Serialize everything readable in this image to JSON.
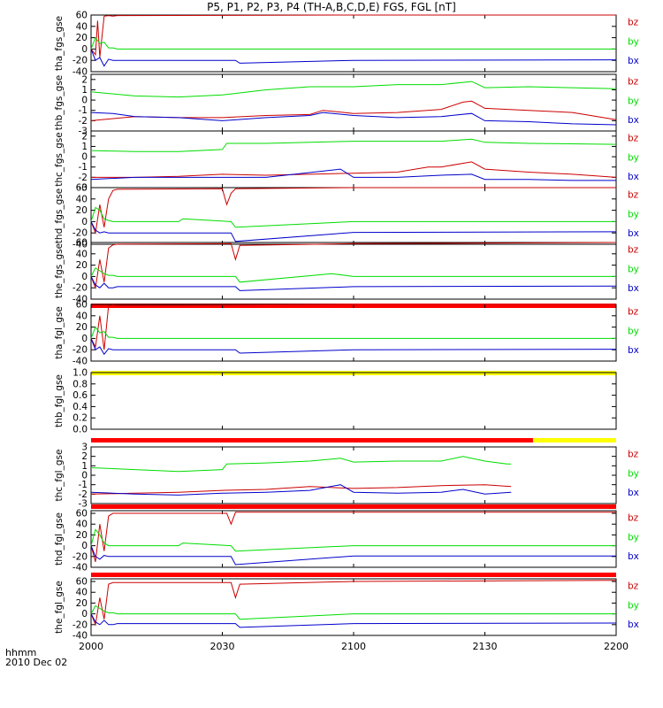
{
  "title": "P5, P1, P2, P3, P4 (TH-A,B,C,D,E) FGS, FGL [nT]",
  "footer": {
    "axis_label_top": "hhmm",
    "axis_label_date": "2010 Dec 02"
  },
  "colors": {
    "bz": "#cc0000",
    "by": "#00dd00",
    "bx": "#0000cc",
    "flag_red": "#ff0000",
    "flag_yellow": "#ffff00"
  },
  "chart_data": {
    "type": "line",
    "x_ticks": [
      "2000",
      "2030",
      "2100",
      "2130",
      "2200"
    ],
    "x_range_minutes": [
      0,
      120
    ],
    "panels": [
      {
        "id": "tha_fgs_gse",
        "ylabel": "tha_fgs_gse",
        "yticks": [
          "60",
          "40",
          "20",
          "0",
          "-20",
          "-40"
        ],
        "ylim": [
          -40,
          60
        ],
        "status_bar": null,
        "series": [
          {
            "name": "bz",
            "x": [
              0,
              1,
              1.5,
              2,
              3,
              4,
              5,
              6,
              60,
              120
            ],
            "y": [
              0,
              -10,
              50,
              -15,
              58,
              59,
              58,
              59,
              60,
              60
            ]
          },
          {
            "name": "by",
            "x": [
              0,
              1,
              2,
              3,
              4,
              5,
              6,
              30,
              60,
              90,
              120
            ],
            "y": [
              0,
              20,
              10,
              12,
              2,
              2,
              0,
              0,
              0,
              0,
              0
            ]
          },
          {
            "name": "bx",
            "x": [
              0,
              1,
              2,
              3,
              4,
              5,
              6,
              33,
              34,
              60,
              120
            ],
            "y": [
              0,
              -20,
              -15,
              -30,
              -18,
              -20,
              -20,
              -20,
              -25,
              -20,
              -19
            ]
          }
        ]
      },
      {
        "id": "thb_fgs_gse",
        "ylabel": "thb_fgs_gse",
        "yticks": [
          "2",
          "1",
          "0",
          "-1",
          "-2",
          "-3"
        ],
        "ylim": [
          -3,
          2.5
        ],
        "status_bar": null,
        "series": [
          {
            "name": "by",
            "x": [
              0,
              10,
              20,
              30,
              40,
              50,
              60,
              70,
              80,
              87,
              90,
              100,
              110,
              120
            ],
            "y": [
              0.8,
              0.4,
              0.3,
              0.5,
              1.0,
              1.3,
              1.3,
              1.5,
              1.5,
              1.8,
              1.2,
              1.3,
              1.2,
              1.1
            ]
          },
          {
            "name": "bz",
            "x": [
              0,
              10,
              20,
              30,
              40,
              50,
              53,
              60,
              70,
              80,
              85,
              87,
              90,
              100,
              110,
              120
            ],
            "y": [
              -2.0,
              -1.6,
              -1.7,
              -1.7,
              -1.5,
              -1.4,
              -1.0,
              -1.3,
              -1.2,
              -0.9,
              -0.2,
              -0.1,
              -0.8,
              -1.0,
              -1.2,
              -1.9
            ]
          },
          {
            "name": "bx",
            "x": [
              0,
              5,
              10,
              20,
              30,
              40,
              50,
              53,
              60,
              70,
              80,
              87,
              90,
              100,
              110,
              120
            ],
            "y": [
              -1.2,
              -1.3,
              -1.6,
              -1.7,
              -2.0,
              -1.7,
              -1.5,
              -1.2,
              -1.5,
              -1.7,
              -1.6,
              -1.3,
              -2.0,
              -2.1,
              -2.3,
              -2.4
            ]
          }
        ]
      },
      {
        "id": "thc_fgs_gse",
        "ylabel": "thc_fgs_gse",
        "yticks": [
          "2",
          "1",
          "0",
          "-1",
          "-2",
          "-3"
        ],
        "ylim": [
          -3,
          2.5
        ],
        "status_bar": null,
        "series": [
          {
            "name": "by",
            "x": [
              0,
              10,
              20,
              30,
              31,
              40,
              60,
              80,
              87,
              90,
              100,
              120
            ],
            "y": [
              0.6,
              0.5,
              0.5,
              0.7,
              1.3,
              1.3,
              1.5,
              1.5,
              1.7,
              1.4,
              1.3,
              1.2
            ]
          },
          {
            "name": "bz",
            "x": [
              0,
              10,
              20,
              30,
              40,
              50,
              60,
              70,
              77,
              80,
              87,
              90,
              100,
              110,
              120
            ],
            "y": [
              -2.0,
              -2.0,
              -1.9,
              -1.7,
              -1.8,
              -1.7,
              -1.6,
              -1.5,
              -1.0,
              -1.0,
              -0.5,
              -1.2,
              -1.5,
              -1.7,
              -2.0
            ]
          },
          {
            "name": "bx",
            "x": [
              0,
              10,
              20,
              30,
              40,
              57,
              60,
              70,
              80,
              87,
              90,
              100,
              110,
              120
            ],
            "y": [
              -2.2,
              -2.0,
              -2.0,
              -2.0,
              -2.0,
              -1.2,
              -2.0,
              -2.0,
              -1.8,
              -1.7,
              -2.2,
              -2.2,
              -2.3,
              -2.3
            ]
          }
        ]
      },
      {
        "id": "thd_fgs_gse",
        "ylabel": "thd_fgs_gse",
        "yticks": [
          "60",
          "40",
          "20",
          "0",
          "-20",
          "-40"
        ],
        "ylim": [
          -40,
          60
        ],
        "status_bar": null,
        "series": [
          {
            "name": "bz",
            "x": [
              0,
              1,
              2,
              3,
              4,
              5,
              6,
              30,
              31,
              32,
              33,
              60,
              120
            ],
            "y": [
              0,
              -20,
              30,
              -10,
              40,
              55,
              57,
              58,
              30,
              50,
              58,
              60,
              60
            ]
          },
          {
            "name": "by",
            "x": [
              0,
              1,
              2,
              3,
              4,
              5,
              6,
              20,
              21,
              32,
              33,
              60,
              120
            ],
            "y": [
              0,
              25,
              20,
              5,
              2,
              0,
              0,
              0,
              5,
              0,
              -10,
              0,
              0
            ]
          },
          {
            "name": "bx",
            "x": [
              0,
              1,
              2,
              3,
              4,
              5,
              6,
              32,
              33,
              60,
              120
            ],
            "y": [
              0,
              -15,
              -20,
              -18,
              -20,
              -20,
              -20,
              -20,
              -35,
              -19,
              -18
            ]
          }
        ]
      },
      {
        "id": "the_fgs_gse",
        "ylabel": "the_fgs_gse",
        "yticks": [
          "60",
          "40",
          "20",
          "0",
          "-20",
          "-40"
        ],
        "ylim": [
          -40,
          60
        ],
        "status_bar": "red",
        "series": [
          {
            "name": "bz",
            "x": [
              0,
              1,
              2,
              3,
              4,
              5,
              6,
              32,
              33,
              34,
              60,
              120
            ],
            "y": [
              0,
              -20,
              30,
              -10,
              50,
              56,
              57,
              58,
              30,
              55,
              58,
              60
            ]
          },
          {
            "name": "by",
            "x": [
              0,
              1,
              2,
              3,
              4,
              5,
              6,
              33,
              34,
              55,
              60,
              120
            ],
            "y": [
              0,
              15,
              10,
              5,
              2,
              2,
              0,
              0,
              -10,
              5,
              0,
              0
            ]
          },
          {
            "name": "bx",
            "x": [
              0,
              1,
              2,
              3,
              4,
              5,
              6,
              33,
              34,
              60,
              120
            ],
            "y": [
              0,
              -15,
              -20,
              -12,
              -20,
              -20,
              -18,
              -18,
              -25,
              -18,
              -17
            ]
          }
        ]
      },
      {
        "id": "tha_fgl_gse",
        "ylabel": "tha_fgl_gse",
        "yticks": [
          "60",
          "40",
          "20",
          "0",
          "-20",
          "-40"
        ],
        "ylim": [
          -40,
          60
        ],
        "status_bar": "yellow",
        "series": [
          {
            "name": "bz",
            "x": [
              0,
              1,
              2,
              3,
              4,
              5,
              6,
              60,
              120
            ],
            "y": [
              0,
              -15,
              40,
              -20,
              58,
              59,
              58,
              60,
              60
            ]
          },
          {
            "name": "by",
            "x": [
              0,
              1,
              2,
              3,
              4,
              5,
              6,
              30,
              60,
              120
            ],
            "y": [
              0,
              20,
              10,
              12,
              2,
              2,
              0,
              0,
              0,
              0
            ]
          },
          {
            "name": "bx",
            "x": [
              0,
              1,
              2,
              3,
              4,
              5,
              6,
              33,
              34,
              60,
              120
            ],
            "y": [
              0,
              -20,
              -15,
              -28,
              -18,
              -20,
              -20,
              -20,
              -26,
              -20,
              -19
            ]
          }
        ]
      },
      {
        "id": "thb_fgl_gse",
        "ylabel": "thb_fgl_gse",
        "yticks": [
          "1.0",
          "0.8",
          "0.6",
          "0.4",
          "0.2",
          "0.0"
        ],
        "ylim": [
          0,
          1.0
        ],
        "status_bar": "red-yellow",
        "series": []
      },
      {
        "id": "thc_fgl_gse",
        "ylabel": "thc_fgl_gse",
        "yticks": [
          "3",
          "2",
          "1",
          "0",
          "-1",
          "-2",
          "-3"
        ],
        "ylim": [
          -3,
          3
        ],
        "status_bar": "red",
        "series": [
          {
            "name": "by",
            "x": [
              0,
              10,
              20,
              30,
              31,
              40,
              50,
              57,
              60,
              70,
              80,
              85,
              90,
              95,
              96
            ],
            "y": [
              0.8,
              0.6,
              0.4,
              0.6,
              1.2,
              1.3,
              1.5,
              1.8,
              1.4,
              1.5,
              1.5,
              2.0,
              1.5,
              1.2,
              1.2
            ]
          },
          {
            "name": "bz",
            "x": [
              0,
              10,
              20,
              30,
              40,
              50,
              60,
              70,
              80,
              90,
              96
            ],
            "y": [
              -2.0,
              -1.9,
              -1.8,
              -1.6,
              -1.5,
              -1.2,
              -1.4,
              -1.3,
              -1.1,
              -1.0,
              -1.2
            ]
          },
          {
            "name": "bx",
            "x": [
              0,
              10,
              20,
              30,
              40,
              50,
              57,
              60,
              70,
              80,
              85,
              90,
              96
            ],
            "y": [
              -1.8,
              -2.0,
              -2.1,
              -1.9,
              -1.8,
              -1.6,
              -1.0,
              -1.8,
              -1.9,
              -1.8,
              -1.5,
              -2.0,
              -1.8
            ]
          }
        ]
      },
      {
        "id": "thd_fgl_gse",
        "ylabel": "thd_fgl_gse",
        "yticks": [
          "60",
          "40",
          "20",
          "0",
          "-20",
          "-40"
        ],
        "ylim": [
          -40,
          65
        ],
        "status_bar": "red",
        "series": [
          {
            "name": "bz",
            "x": [
              0,
              1,
              2,
              3,
              4,
              5,
              6,
              31,
              32,
              33,
              60,
              120
            ],
            "y": [
              0,
              -30,
              40,
              -10,
              55,
              60,
              60,
              60,
              40,
              62,
              62,
              62
            ]
          },
          {
            "name": "by",
            "x": [
              0,
              1,
              2,
              3,
              4,
              5,
              6,
              20,
              21,
              32,
              33,
              60,
              120
            ],
            "y": [
              0,
              30,
              20,
              5,
              0,
              0,
              0,
              0,
              5,
              0,
              -10,
              0,
              0
            ]
          },
          {
            "name": "bx",
            "x": [
              0,
              1,
              2,
              3,
              4,
              5,
              6,
              32,
              33,
              60,
              120
            ],
            "y": [
              0,
              -20,
              -25,
              -18,
              -20,
              -20,
              -20,
              -20,
              -35,
              -19,
              -19
            ]
          }
        ]
      },
      {
        "id": "the_fgl_gse",
        "ylabel": "the_fgl_gse",
        "yticks": [
          "60",
          "40",
          "20",
          "0",
          "-20",
          "-40"
        ],
        "ylim": [
          -40,
          65
        ],
        "status_bar": null,
        "series": [
          {
            "name": "bz",
            "x": [
              0,
              1,
              2,
              3,
              4,
              5,
              6,
              32,
              33,
              34,
              60,
              120
            ],
            "y": [
              0,
              -20,
              30,
              -10,
              55,
              58,
              58,
              58,
              30,
              55,
              60,
              62
            ]
          },
          {
            "name": "by",
            "x": [
              0,
              1,
              2,
              3,
              4,
              5,
              6,
              33,
              34,
              60,
              120
            ],
            "y": [
              0,
              15,
              10,
              5,
              2,
              2,
              0,
              0,
              -10,
              0,
              0
            ]
          },
          {
            "name": "bx",
            "x": [
              0,
              1,
              2,
              3,
              4,
              5,
              6,
              33,
              34,
              60,
              120
            ],
            "y": [
              0,
              -15,
              -20,
              -12,
              -20,
              -20,
              -18,
              -18,
              -25,
              -18,
              -17
            ]
          }
        ]
      }
    ]
  }
}
